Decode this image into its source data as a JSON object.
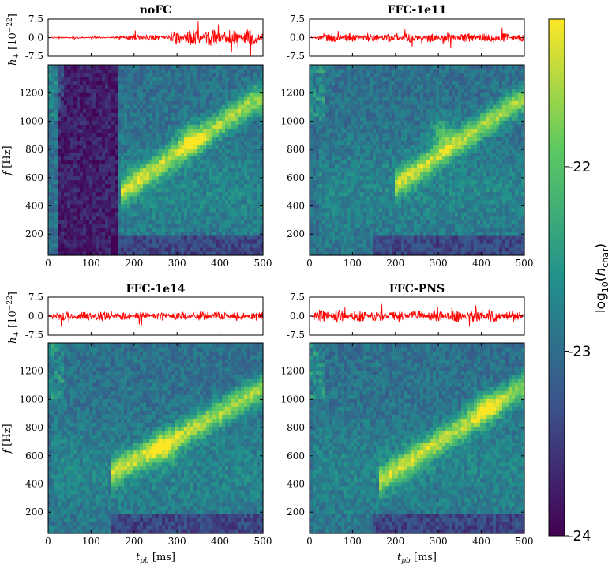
{
  "chart_data": {
    "type": "heatmap",
    "colormap": "viridis",
    "colormap_stops": [
      "#440154",
      "#3b528b",
      "#21918c",
      "#5ec962",
      "#fde725"
    ],
    "colorbar": {
      "label_prefix": "log",
      "label_sub": "10",
      "label_open": "(",
      "label_var": "h",
      "label_var_sub": "char",
      "label_close": ")",
      "range": [
        -24,
        -21.2
      ],
      "ticks": [
        {
          "value": -22,
          "label": "-22"
        },
        {
          "value": -23,
          "label": "-23"
        },
        {
          "value": -24,
          "label": "-24"
        }
      ]
    },
    "waveform_axis": {
      "ylabel_var": "h",
      "ylabel_sub": "+",
      "ylabel_unit_open": " [10",
      "ylabel_unit_exp": "−22",
      "ylabel_unit_close": "]",
      "ylim": [
        -7.5,
        7.5
      ],
      "ticks": [
        {
          "value": 7.5,
          "label": "7.5"
        },
        {
          "value": 0,
          "label": "0.0"
        },
        {
          "value": -7.5,
          "label": "-7.5"
        }
      ]
    },
    "spectrogram_axis": {
      "ylabel_var": "f",
      "ylabel_unit": " [Hz]",
      "ylim": [
        50,
        1400
      ],
      "yticks": [
        {
          "value": 200,
          "label": "200"
        },
        {
          "value": 400,
          "label": "400"
        },
        {
          "value": 600,
          "label": "600"
        },
        {
          "value": 800,
          "label": "800"
        },
        {
          "value": 1000,
          "label": "1000"
        },
        {
          "value": 1200,
          "label": "1200"
        }
      ]
    },
    "x_axis": {
      "xlabel_var": "t",
      "xlabel_sub": "pb",
      "xlabel_unit": " [ms]",
      "xlim": [
        0,
        500
      ],
      "xticks": [
        {
          "value": 0,
          "label": "0"
        },
        {
          "value": 100,
          "label": "100"
        },
        {
          "value": 200,
          "label": "200"
        },
        {
          "value": 300,
          "label": "300"
        },
        {
          "value": 400,
          "label": "400"
        },
        {
          "value": 500,
          "label": "500"
        }
      ]
    },
    "panels": [
      {
        "title": "noFC",
        "quiet_until_ms": 165,
        "track_start": [
          170,
          500
        ],
        "track_end": [
          480,
          1150
        ],
        "bump_ms": 330,
        "bump_hz": 880,
        "amp_early": 0.9,
        "amp_late": 2.6
      },
      {
        "title": "FFC-1e11",
        "quiet_until_ms": 20,
        "track_start": [
          200,
          550
        ],
        "track_end": [
          490,
          1150
        ],
        "bump_ms": 310,
        "bump_hz": 920,
        "amp_early": 1.4,
        "amp_late": 1.4
      },
      {
        "title": "FFC-1e14",
        "quiet_until_ms": 10,
        "track_start": [
          150,
          480
        ],
        "track_end": [
          500,
          1080
        ],
        "bump_ms": 270,
        "bump_hz": 650,
        "amp_early": 1.6,
        "amp_late": 1.4
      },
      {
        "title": "FFC-PNS",
        "quiet_until_ms": 10,
        "track_start": [
          160,
          420
        ],
        "track_end": [
          500,
          1100
        ],
        "bump_ms": 410,
        "bump_hz": 950,
        "amp_early": 2.0,
        "amp_late": 1.8
      }
    ]
  }
}
